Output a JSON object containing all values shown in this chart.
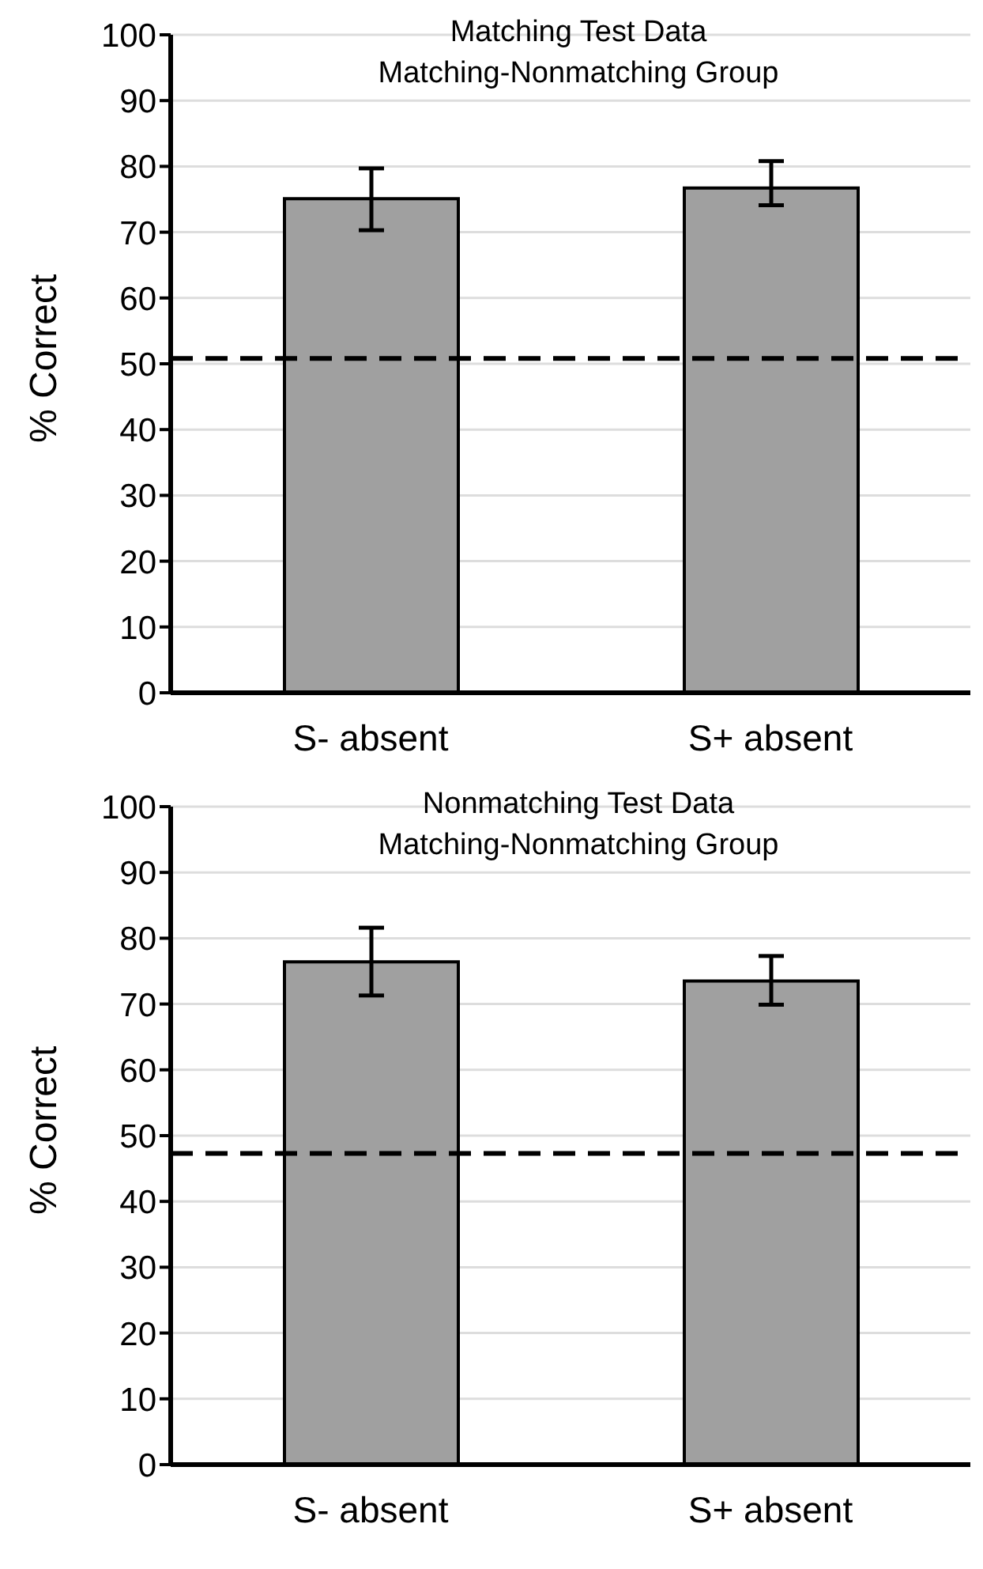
{
  "chart_data": [
    {
      "type": "bar",
      "title": "Matching Test Data",
      "subtitle": "Matching-Nonmatching Group",
      "ylabel": "% Correct",
      "categories": [
        "S- absent",
        "S+ absent"
      ],
      "values": [
        75.1,
        76.7
      ],
      "color": "#a0a0a0",
      "errors": [
        [
          70.3,
          79.7
        ],
        [
          74.1,
          80.8
        ]
      ],
      "ylim": [
        0,
        100
      ],
      "yticks": [
        0,
        10,
        20,
        30,
        40,
        50,
        60,
        70,
        80,
        90,
        100
      ],
      "grid": "y",
      "ref_lines": [
        {
          "axis": "y",
          "value": 50.8,
          "line_style": "dashed",
          "color": "#000000"
        }
      ]
    },
    {
      "type": "bar",
      "title": "Nonmatching Test Data",
      "subtitle": "Matching-Nonmatching Group",
      "ylabel": "% Correct",
      "categories": [
        "S- absent",
        "S+ absent"
      ],
      "values": [
        76.4,
        73.5
      ],
      "color": "#a0a0a0",
      "errors": [
        [
          71.3,
          81.6
        ],
        [
          69.9,
          77.3
        ]
      ],
      "ylim": [
        0,
        100
      ],
      "yticks": [
        0,
        10,
        20,
        30,
        40,
        50,
        60,
        70,
        80,
        90,
        100
      ],
      "grid": "y",
      "ref_lines": [
        {
          "axis": "y",
          "value": 47.3,
          "line_style": "dashed",
          "color": "#000000"
        }
      ]
    }
  ]
}
